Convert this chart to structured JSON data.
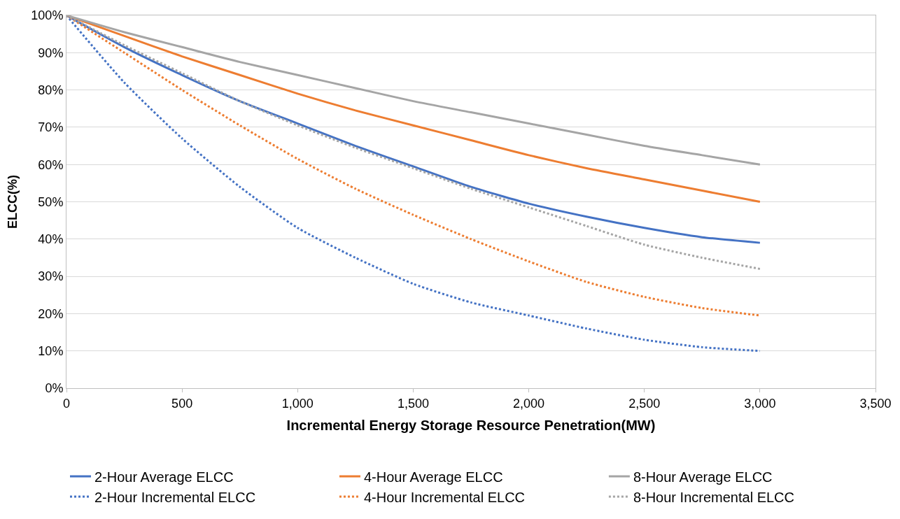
{
  "chart_data": {
    "type": "line",
    "xlabel": "Incremental Energy Storage Resource Penetration(MW)",
    "ylabel": "ELCC(%)",
    "x": [
      0,
      250,
      500,
      750,
      1000,
      1250,
      1500,
      1750,
      2000,
      2250,
      2500,
      2750,
      3000
    ],
    "series": [
      {
        "name": "2-Hour Average ELCC",
        "color": "#4472c4",
        "line_style": "solid",
        "values": [
          100,
          91.5,
          84,
          77,
          71,
          65,
          59.5,
          54,
          49.5,
          46,
          43,
          40.5,
          39
        ]
      },
      {
        "name": "4-Hour Average ELCC",
        "color": "#ed7d31",
        "line_style": "solid",
        "values": [
          100,
          94.5,
          89,
          84,
          79,
          74.5,
          70.5,
          66.5,
          62.5,
          59,
          56,
          53,
          50
        ]
      },
      {
        "name": "8-Hour Average ELCC",
        "color": "#a5a5a5",
        "line_style": "solid",
        "values": [
          100,
          95.5,
          91.5,
          87.5,
          84,
          80.5,
          77,
          74,
          71,
          68,
          65,
          62.5,
          60
        ]
      },
      {
        "name": "2-Hour Incremental ELCC",
        "color": "#4472c4",
        "line_style": "dotted",
        "values": [
          100,
          82,
          67,
          54,
          43,
          35,
          28,
          23,
          19.5,
          16,
          13,
          11,
          10
        ]
      },
      {
        "name": "4-Hour Incremental ELCC",
        "color": "#ed7d31",
        "line_style": "dotted",
        "values": [
          100,
          90,
          80,
          70.5,
          61.5,
          53.5,
          46.5,
          40,
          34,
          28.5,
          24.5,
          21.5,
          19.5
        ]
      },
      {
        "name": "8-Hour Incremental ELCC",
        "color": "#a5a5a5",
        "line_style": "dotted",
        "values": [
          100,
          92,
          84.5,
          77,
          70.5,
          64.5,
          59,
          53.5,
          48.5,
          43.5,
          38.5,
          35,
          32
        ]
      }
    ],
    "xlim": [
      0,
      3500
    ],
    "xticks": [
      {
        "value": 0,
        "label": "0"
      },
      {
        "value": 500,
        "label": "500"
      },
      {
        "value": 1000,
        "label": "1,000"
      },
      {
        "value": 1500,
        "label": "1,500"
      },
      {
        "value": 2000,
        "label": "2,000"
      },
      {
        "value": 2500,
        "label": "2,500"
      },
      {
        "value": 3000,
        "label": "3,000"
      },
      {
        "value": 3500,
        "label": "3,500"
      }
    ],
    "ylim": [
      0,
      100
    ],
    "yticks": [
      {
        "value": 0,
        "label": "0%"
      },
      {
        "value": 10,
        "label": "10%"
      },
      {
        "value": 20,
        "label": "20%"
      },
      {
        "value": 30,
        "label": "30%"
      },
      {
        "value": 40,
        "label": "40%"
      },
      {
        "value": 50,
        "label": "50%"
      },
      {
        "value": 60,
        "label": "60%"
      },
      {
        "value": 70,
        "label": "70%"
      },
      {
        "value": 80,
        "label": "80%"
      },
      {
        "value": 90,
        "label": "90%"
      },
      {
        "value": 100,
        "label": "100%"
      }
    ],
    "grid": "y",
    "legend": "bottom",
    "marker": "none"
  }
}
